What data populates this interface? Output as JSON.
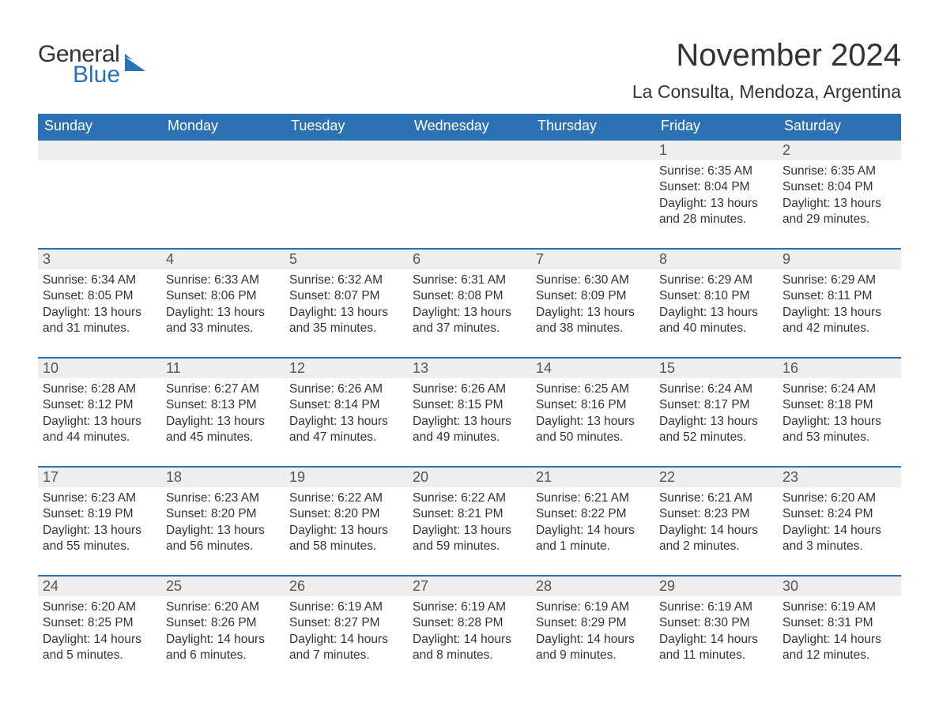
{
  "logo": {
    "general": "General",
    "blue": "Blue",
    "icon_color": "#2d71b5"
  },
  "title": "November 2024",
  "location": "La Consulta, Mendoza, Argentina",
  "colors": {
    "header_bg": "#2d71b5",
    "header_text": "#ffffff",
    "daynum_bg": "#eeeeee",
    "text": "#333333",
    "row_border": "#2d71b5"
  },
  "weekdays": [
    "Sunday",
    "Monday",
    "Tuesday",
    "Wednesday",
    "Thursday",
    "Friday",
    "Saturday"
  ],
  "weeks": [
    [
      null,
      null,
      null,
      null,
      null,
      {
        "n": "1",
        "sunrise": "Sunrise: 6:35 AM",
        "sunset": "Sunset: 8:04 PM",
        "daylight1": "Daylight: 13 hours",
        "daylight2": "and 28 minutes."
      },
      {
        "n": "2",
        "sunrise": "Sunrise: 6:35 AM",
        "sunset": "Sunset: 8:04 PM",
        "daylight1": "Daylight: 13 hours",
        "daylight2": "and 29 minutes."
      }
    ],
    [
      {
        "n": "3",
        "sunrise": "Sunrise: 6:34 AM",
        "sunset": "Sunset: 8:05 PM",
        "daylight1": "Daylight: 13 hours",
        "daylight2": "and 31 minutes."
      },
      {
        "n": "4",
        "sunrise": "Sunrise: 6:33 AM",
        "sunset": "Sunset: 8:06 PM",
        "daylight1": "Daylight: 13 hours",
        "daylight2": "and 33 minutes."
      },
      {
        "n": "5",
        "sunrise": "Sunrise: 6:32 AM",
        "sunset": "Sunset: 8:07 PM",
        "daylight1": "Daylight: 13 hours",
        "daylight2": "and 35 minutes."
      },
      {
        "n": "6",
        "sunrise": "Sunrise: 6:31 AM",
        "sunset": "Sunset: 8:08 PM",
        "daylight1": "Daylight: 13 hours",
        "daylight2": "and 37 minutes."
      },
      {
        "n": "7",
        "sunrise": "Sunrise: 6:30 AM",
        "sunset": "Sunset: 8:09 PM",
        "daylight1": "Daylight: 13 hours",
        "daylight2": "and 38 minutes."
      },
      {
        "n": "8",
        "sunrise": "Sunrise: 6:29 AM",
        "sunset": "Sunset: 8:10 PM",
        "daylight1": "Daylight: 13 hours",
        "daylight2": "and 40 minutes."
      },
      {
        "n": "9",
        "sunrise": "Sunrise: 6:29 AM",
        "sunset": "Sunset: 8:11 PM",
        "daylight1": "Daylight: 13 hours",
        "daylight2": "and 42 minutes."
      }
    ],
    [
      {
        "n": "10",
        "sunrise": "Sunrise: 6:28 AM",
        "sunset": "Sunset: 8:12 PM",
        "daylight1": "Daylight: 13 hours",
        "daylight2": "and 44 minutes."
      },
      {
        "n": "11",
        "sunrise": "Sunrise: 6:27 AM",
        "sunset": "Sunset: 8:13 PM",
        "daylight1": "Daylight: 13 hours",
        "daylight2": "and 45 minutes."
      },
      {
        "n": "12",
        "sunrise": "Sunrise: 6:26 AM",
        "sunset": "Sunset: 8:14 PM",
        "daylight1": "Daylight: 13 hours",
        "daylight2": "and 47 minutes."
      },
      {
        "n": "13",
        "sunrise": "Sunrise: 6:26 AM",
        "sunset": "Sunset: 8:15 PM",
        "daylight1": "Daylight: 13 hours",
        "daylight2": "and 49 minutes."
      },
      {
        "n": "14",
        "sunrise": "Sunrise: 6:25 AM",
        "sunset": "Sunset: 8:16 PM",
        "daylight1": "Daylight: 13 hours",
        "daylight2": "and 50 minutes."
      },
      {
        "n": "15",
        "sunrise": "Sunrise: 6:24 AM",
        "sunset": "Sunset: 8:17 PM",
        "daylight1": "Daylight: 13 hours",
        "daylight2": "and 52 minutes."
      },
      {
        "n": "16",
        "sunrise": "Sunrise: 6:24 AM",
        "sunset": "Sunset: 8:18 PM",
        "daylight1": "Daylight: 13 hours",
        "daylight2": "and 53 minutes."
      }
    ],
    [
      {
        "n": "17",
        "sunrise": "Sunrise: 6:23 AM",
        "sunset": "Sunset: 8:19 PM",
        "daylight1": "Daylight: 13 hours",
        "daylight2": "and 55 minutes."
      },
      {
        "n": "18",
        "sunrise": "Sunrise: 6:23 AM",
        "sunset": "Sunset: 8:20 PM",
        "daylight1": "Daylight: 13 hours",
        "daylight2": "and 56 minutes."
      },
      {
        "n": "19",
        "sunrise": "Sunrise: 6:22 AM",
        "sunset": "Sunset: 8:20 PM",
        "daylight1": "Daylight: 13 hours",
        "daylight2": "and 58 minutes."
      },
      {
        "n": "20",
        "sunrise": "Sunrise: 6:22 AM",
        "sunset": "Sunset: 8:21 PM",
        "daylight1": "Daylight: 13 hours",
        "daylight2": "and 59 minutes."
      },
      {
        "n": "21",
        "sunrise": "Sunrise: 6:21 AM",
        "sunset": "Sunset: 8:22 PM",
        "daylight1": "Daylight: 14 hours",
        "daylight2": "and 1 minute."
      },
      {
        "n": "22",
        "sunrise": "Sunrise: 6:21 AM",
        "sunset": "Sunset: 8:23 PM",
        "daylight1": "Daylight: 14 hours",
        "daylight2": "and 2 minutes."
      },
      {
        "n": "23",
        "sunrise": "Sunrise: 6:20 AM",
        "sunset": "Sunset: 8:24 PM",
        "daylight1": "Daylight: 14 hours",
        "daylight2": "and 3 minutes."
      }
    ],
    [
      {
        "n": "24",
        "sunrise": "Sunrise: 6:20 AM",
        "sunset": "Sunset: 8:25 PM",
        "daylight1": "Daylight: 14 hours",
        "daylight2": "and 5 minutes."
      },
      {
        "n": "25",
        "sunrise": "Sunrise: 6:20 AM",
        "sunset": "Sunset: 8:26 PM",
        "daylight1": "Daylight: 14 hours",
        "daylight2": "and 6 minutes."
      },
      {
        "n": "26",
        "sunrise": "Sunrise: 6:19 AM",
        "sunset": "Sunset: 8:27 PM",
        "daylight1": "Daylight: 14 hours",
        "daylight2": "and 7 minutes."
      },
      {
        "n": "27",
        "sunrise": "Sunrise: 6:19 AM",
        "sunset": "Sunset: 8:28 PM",
        "daylight1": "Daylight: 14 hours",
        "daylight2": "and 8 minutes."
      },
      {
        "n": "28",
        "sunrise": "Sunrise: 6:19 AM",
        "sunset": "Sunset: 8:29 PM",
        "daylight1": "Daylight: 14 hours",
        "daylight2": "and 9 minutes."
      },
      {
        "n": "29",
        "sunrise": "Sunrise: 6:19 AM",
        "sunset": "Sunset: 8:30 PM",
        "daylight1": "Daylight: 14 hours",
        "daylight2": "and 11 minutes."
      },
      {
        "n": "30",
        "sunrise": "Sunrise: 6:19 AM",
        "sunset": "Sunset: 8:31 PM",
        "daylight1": "Daylight: 14 hours",
        "daylight2": "and 12 minutes."
      }
    ]
  ]
}
